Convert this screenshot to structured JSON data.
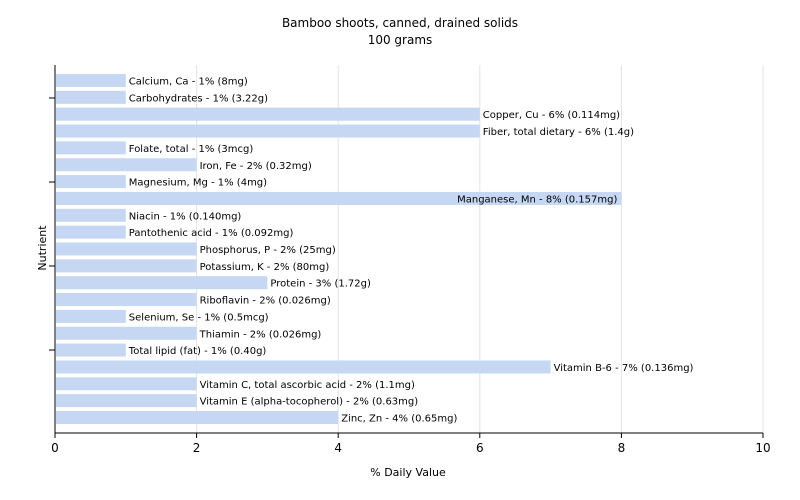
{
  "chart_data": {
    "type": "bar",
    "orientation": "horizontal",
    "title": "Bamboo shoots, canned, drained solids",
    "subtitle": "100 grams",
    "xlabel": "% Daily Value",
    "ylabel": "Nutrient",
    "xlim": [
      0,
      10
    ],
    "xticks": [
      0,
      2,
      4,
      6,
      8,
      10
    ],
    "grid": true,
    "bar_color": "#c5d7f2",
    "categories": [
      "Calcium, Ca",
      "Carbohydrates",
      "Copper, Cu",
      "Fiber, total dietary",
      "Folate, total",
      "Iron, Fe",
      "Magnesium, Mg",
      "Manganese, Mn",
      "Niacin",
      "Pantothenic acid",
      "Phosphorus, P",
      "Potassium, K",
      "Protein",
      "Riboflavin",
      "Selenium, Se",
      "Thiamin",
      "Total lipid (fat)",
      "Vitamin B-6",
      "Vitamin C, total ascorbic acid",
      "Vitamin E (alpha-tocopherol)",
      "Zinc, Zn"
    ],
    "values": [
      1,
      1,
      6,
      6,
      1,
      2,
      1,
      8,
      1,
      1,
      2,
      2,
      3,
      2,
      1,
      2,
      1,
      7,
      2,
      2,
      4
    ],
    "labels": [
      "Calcium, Ca - 1% (8mg)",
      "Carbohydrates - 1% (3.22g)",
      "Copper, Cu - 6% (0.114mg)",
      "Fiber, total dietary - 6% (1.4g)",
      "Folate, total - 1% (3mcg)",
      "Iron, Fe - 2% (0.32mg)",
      "Magnesium, Mg - 1% (4mg)",
      "Manganese, Mn - 8% (0.157mg)",
      "Niacin - 1% (0.140mg)",
      "Pantothenic acid - 1% (0.092mg)",
      "Phosphorus, P - 2% (25mg)",
      "Potassium, K - 2% (80mg)",
      "Protein - 3% (1.72g)",
      "Riboflavin - 2% (0.026mg)",
      "Selenium, Se - 1% (0.5mcg)",
      "Thiamin - 2% (0.026mg)",
      "Total lipid (fat) - 1% (0.40g)",
      "Vitamin B-6 - 7% (0.136mg)",
      "Vitamin C, total ascorbic acid - 2% (1.1mg)",
      "Vitamin E (alpha-tocopherol) - 2% (0.63mg)",
      "Zinc, Zn - 4% (0.65mg)"
    ]
  }
}
